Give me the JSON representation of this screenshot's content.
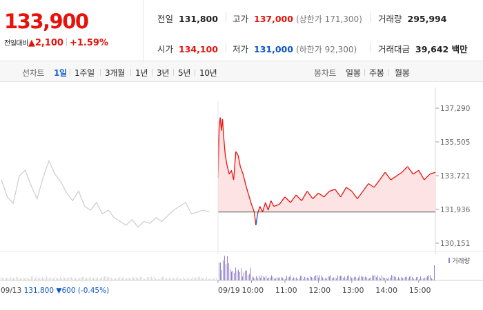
{
  "summary": {
    "current_price": "133,900",
    "change_label": "전일대비",
    "change_arrow": "▲",
    "change_value": "2,100",
    "change_rate": "+1.59%",
    "prev_close_label": "전일",
    "prev_close": "131,800",
    "high_label": "고가",
    "high": "137,000",
    "upper_limit_text": "(상한가 171,300)",
    "volume_label": "거래량",
    "volume": "295,994",
    "open_label": "시가",
    "open": "134,100",
    "low_label": "저가",
    "low": "131,000",
    "lower_limit_text": "(하한가 92,300)",
    "trade_value_label": "거래대금",
    "trade_value": "39,642 백만"
  },
  "toolbar": {
    "line_chart_label": "선차트",
    "periods": [
      "1일",
      "1주일",
      "3개월",
      "1년",
      "3년",
      "5년",
      "10년"
    ],
    "active_period": "1일",
    "candle_chart_label": "봉차트",
    "candle_periods": [
      "일봉",
      "주봉",
      "월봉"
    ]
  },
  "colors": {
    "up": "#e6120b",
    "down": "#0b55c8",
    "prev_line": "#cfcfcf",
    "area_fill": "#fde3e3",
    "volume": "#9583c9"
  },
  "chart_data": {
    "type": "line",
    "title": "",
    "y_ticks": [
      "137,290",
      "135,505",
      "133,721",
      "131,936",
      "130,151"
    ],
    "ylim": [
      130151,
      137290
    ],
    "baseline": 131800,
    "x_tick_labels": [
      "09/19",
      "10:00",
      "11:00",
      "12:00",
      "13:00",
      "14:00",
      "15:00"
    ],
    "prev_day_caption": {
      "date": "09/13",
      "close": "131,800",
      "arrow": "▼",
      "change": "600",
      "rate": "(-0.45%)"
    },
    "volume_legend": "거래량",
    "series": [
      {
        "values": [
          {
            "x": "-09:00",
            "y": 133500
          },
          {
            "x": "-08:45",
            "y": 132600
          },
          {
            "x": "-08:30",
            "y": 132250
          },
          {
            "x": "-08:15",
            "y": 133700
          },
          {
            "x": "-08:00",
            "y": 134000
          },
          {
            "x": "-07:45",
            "y": 133200
          },
          {
            "x": "-07:30",
            "y": 132500
          },
          {
            "x": "-07:15",
            "y": 133600
          },
          {
            "x": "-07:00",
            "y": 134500
          },
          {
            "x": "-06:45",
            "y": 133800
          },
          {
            "x": "-06:30",
            "y": 133400
          },
          {
            "x": "-06:15",
            "y": 132800
          },
          {
            "x": "-06:00",
            "y": 132400
          },
          {
            "x": "-05:45",
            "y": 132900
          },
          {
            "x": "-05:30",
            "y": 132100
          },
          {
            "x": "-05:15",
            "y": 131900
          },
          {
            "x": "-05:00",
            "y": 132300
          },
          {
            "x": "-04:45",
            "y": 131700
          },
          {
            "x": "-04:30",
            "y": 131900
          },
          {
            "x": "-04:15",
            "y": 131500
          },
          {
            "x": "-04:00",
            "y": 131300
          },
          {
            "x": "-03:45",
            "y": 131100
          },
          {
            "x": "-03:30",
            "y": 131400
          },
          {
            "x": "-03:15",
            "y": 131000
          },
          {
            "x": "-03:00",
            "y": 131300
          },
          {
            "x": "-02:45",
            "y": 131200
          },
          {
            "x": "-02:30",
            "y": 131500
          },
          {
            "x": "-02:15",
            "y": 131300
          },
          {
            "x": "-02:00",
            "y": 131600
          },
          {
            "x": "-01:45",
            "y": 131900
          },
          {
            "x": "-01:30",
            "y": 132100
          },
          {
            "x": "-01:15",
            "y": 132300
          },
          {
            "x": "-01:00",
            "y": 131700
          },
          {
            "x": "-00:45",
            "y": 131800
          },
          {
            "x": "-00:30",
            "y": 131900
          },
          {
            "x": "-00:15",
            "y": 131800
          }
        ]
      },
      {
        "values": [
          {
            "x": "09:00",
            "y": 133600
          },
          {
            "x": "09:02",
            "y": 136300
          },
          {
            "x": "09:04",
            "y": 136800
          },
          {
            "x": "09:06",
            "y": 136100
          },
          {
            "x": "09:08",
            "y": 136700
          },
          {
            "x": "09:10",
            "y": 135800
          },
          {
            "x": "09:13",
            "y": 134800
          },
          {
            "x": "09:16",
            "y": 134300
          },
          {
            "x": "09:20",
            "y": 133800
          },
          {
            "x": "09:24",
            "y": 134000
          },
          {
            "x": "09:28",
            "y": 133500
          },
          {
            "x": "09:32",
            "y": 135000
          },
          {
            "x": "09:36",
            "y": 134800
          },
          {
            "x": "09:40",
            "y": 134200
          },
          {
            "x": "09:45",
            "y": 133800
          },
          {
            "x": "09:50",
            "y": 133200
          },
          {
            "x": "09:55",
            "y": 132700
          },
          {
            "x": "10:00",
            "y": 132200
          },
          {
            "x": "10:05",
            "y": 131800
          },
          {
            "x": "10:08",
            "y": 131100
          },
          {
            "x": "10:11",
            "y": 131700
          },
          {
            "x": "10:15",
            "y": 132100
          },
          {
            "x": "10:20",
            "y": 131800
          },
          {
            "x": "10:25",
            "y": 132300
          },
          {
            "x": "10:30",
            "y": 131900
          },
          {
            "x": "10:35",
            "y": 132400
          },
          {
            "x": "10:40",
            "y": 132100
          },
          {
            "x": "10:50",
            "y": 132200
          },
          {
            "x": "11:00",
            "y": 132600
          },
          {
            "x": "11:10",
            "y": 132300
          },
          {
            "x": "11:20",
            "y": 132700
          },
          {
            "x": "11:30",
            "y": 132400
          },
          {
            "x": "11:40",
            "y": 132900
          },
          {
            "x": "11:50",
            "y": 132500
          },
          {
            "x": "12:00",
            "y": 132800
          },
          {
            "x": "12:10",
            "y": 132600
          },
          {
            "x": "12:20",
            "y": 132900
          },
          {
            "x": "12:30",
            "y": 133000
          },
          {
            "x": "12:40",
            "y": 132600
          },
          {
            "x": "12:50",
            "y": 133100
          },
          {
            "x": "13:00",
            "y": 132900
          },
          {
            "x": "13:10",
            "y": 132500
          },
          {
            "x": "13:20",
            "y": 132900
          },
          {
            "x": "13:30",
            "y": 133300
          },
          {
            "x": "13:40",
            "y": 133100
          },
          {
            "x": "13:50",
            "y": 133500
          },
          {
            "x": "14:00",
            "y": 133900
          },
          {
            "x": "14:10",
            "y": 133500
          },
          {
            "x": "14:20",
            "y": 133700
          },
          {
            "x": "14:30",
            "y": 133900
          },
          {
            "x": "14:40",
            "y": 134200
          },
          {
            "x": "14:50",
            "y": 133800
          },
          {
            "x": "15:00",
            "y": 134000
          },
          {
            "x": "15:10",
            "y": 133500
          },
          {
            "x": "15:20",
            "y": 133800
          },
          {
            "x": "15:30",
            "y": 133900
          }
        ]
      }
    ]
  }
}
